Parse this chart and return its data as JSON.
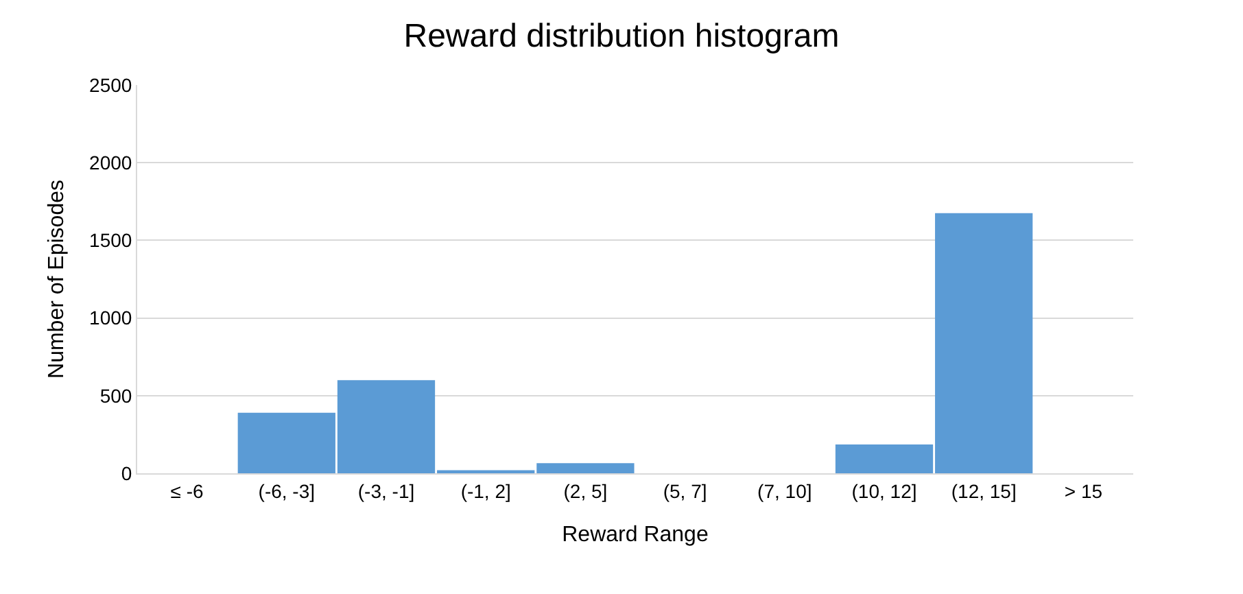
{
  "chart_data": {
    "type": "bar",
    "title": "Reward distribution histogram",
    "xlabel": "Reward Range",
    "ylabel": "Number of Episodes",
    "categories": [
      "≤ -6",
      "(-6, -3]",
      "(-3, -1]",
      "(-1, 2]",
      "(2, 5]",
      "(5, 7]",
      "(7, 10]",
      "(10, 12]",
      "(12, 15]",
      "> 15"
    ],
    "values": [
      0,
      390,
      600,
      20,
      65,
      0,
      0,
      185,
      1675,
      0
    ],
    "color": "#5b9bd5",
    "ylim": [
      0,
      2500
    ],
    "yticks": [
      0,
      500,
      1000,
      1500,
      2000,
      2500
    ],
    "grid": "y",
    "legend": false
  }
}
